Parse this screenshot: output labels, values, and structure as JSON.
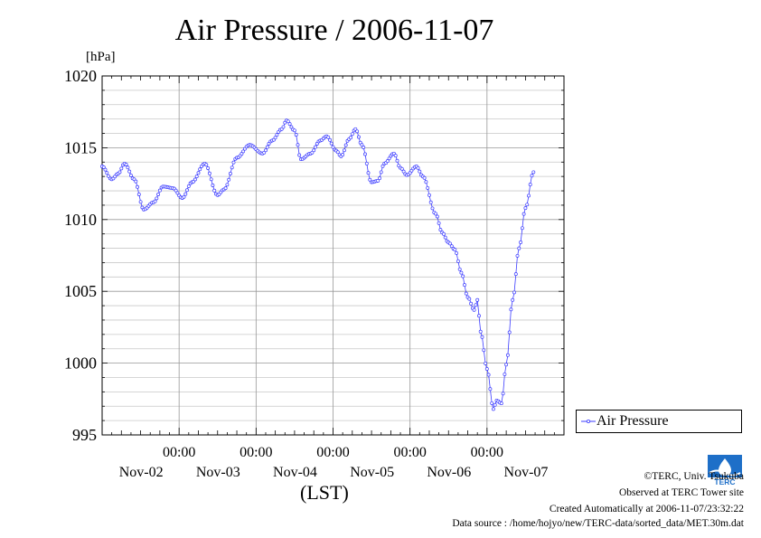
{
  "title": "Air Pressure / 2006-11-07",
  "legend": {
    "label": "Air Pressure"
  },
  "footer": {
    "copyright": "©TERC, Univ. Tsukuba",
    "observed": "Observed at TERC Tower site",
    "created": "Created Automatically at 2006-11-07/23:32:22",
    "source": "Data source : /home/hojyo/new/TERC-data/sorted_data/MET.30m.dat"
  },
  "logo_text": "TERC",
  "colors": {
    "series": "#3b3bff",
    "grid": "#aaaaaa",
    "axis": "#000000"
  },
  "chart_data": {
    "type": "line",
    "title": "Air Pressure / 2006-11-07",
    "ylabel": "[hPa]",
    "xlabel": "(LST)",
    "ylim": [
      995,
      1020
    ],
    "yticks": [
      995,
      1000,
      1005,
      1010,
      1015,
      1020
    ],
    "x_range_hours": [
      0,
      144
    ],
    "x_ticks": [
      {
        "hour": 24,
        "time": "00:00",
        "date": "Nov-02"
      },
      {
        "hour": 48,
        "time": "00:00",
        "date": "Nov-03"
      },
      {
        "hour": 72,
        "time": "00:00",
        "date": "Nov-04"
      },
      {
        "hour": 96,
        "time": "00:00",
        "date": "Nov-05"
      },
      {
        "hour": 120,
        "time": "00:00",
        "date": "Nov-06"
      },
      {
        "hour": 144,
        "time": "",
        "date": "Nov-07"
      }
    ],
    "grid": true,
    "legend_position": "right-bottom",
    "series": [
      {
        "name": "Air Pressure",
        "keypoints": [
          [
            0,
            1013.7
          ],
          [
            3,
            1012.8
          ],
          [
            5,
            1013.2
          ],
          [
            7,
            1013.9
          ],
          [
            10,
            1012.8
          ],
          [
            13,
            1010.7
          ],
          [
            16,
            1011.2
          ],
          [
            19,
            1012.3
          ],
          [
            22,
            1012.2
          ],
          [
            25,
            1011.5
          ],
          [
            28,
            1012.6
          ],
          [
            32,
            1013.9
          ],
          [
            36,
            1011.7
          ],
          [
            38,
            1012.1
          ],
          [
            42,
            1014.3
          ],
          [
            46,
            1015.2
          ],
          [
            50,
            1014.6
          ],
          [
            53,
            1015.5
          ],
          [
            56,
            1016.3
          ],
          [
            57.5,
            1016.9
          ],
          [
            60,
            1016.2
          ],
          [
            62,
            1014.2
          ],
          [
            65,
            1014.6
          ],
          [
            68,
            1015.5
          ],
          [
            70,
            1015.8
          ],
          [
            73,
            1014.8
          ],
          [
            74.5,
            1014.4
          ],
          [
            77,
            1015.6
          ],
          [
            79,
            1016.3
          ],
          [
            81,
            1015.2
          ],
          [
            84,
            1012.6
          ],
          [
            86,
            1012.7
          ],
          [
            88,
            1013.9
          ],
          [
            91,
            1014.6
          ],
          [
            93,
            1013.6
          ],
          [
            95,
            1013.1
          ],
          [
            98,
            1013.7
          ],
          [
            100,
            1013.0
          ],
          [
            104,
            1010.4
          ],
          [
            106,
            1009.1
          ],
          [
            108,
            1008.4
          ],
          [
            110,
            1007.9
          ],
          [
            112,
            1006.3
          ],
          [
            114,
            1004.6
          ],
          [
            116,
            1003.7
          ],
          [
            117,
            1004.4
          ],
          [
            118,
            1002.2
          ],
          [
            120,
            999.6
          ],
          [
            122,
            996.8
          ],
          [
            123,
            997.4
          ],
          [
            124.5,
            997.2
          ],
          [
            126,
            999.9
          ],
          [
            128,
            1004.4
          ],
          [
            130,
            1008.0
          ],
          [
            132,
            1010.8
          ],
          [
            134.5,
            1013.3
          ]
        ]
      }
    ]
  }
}
